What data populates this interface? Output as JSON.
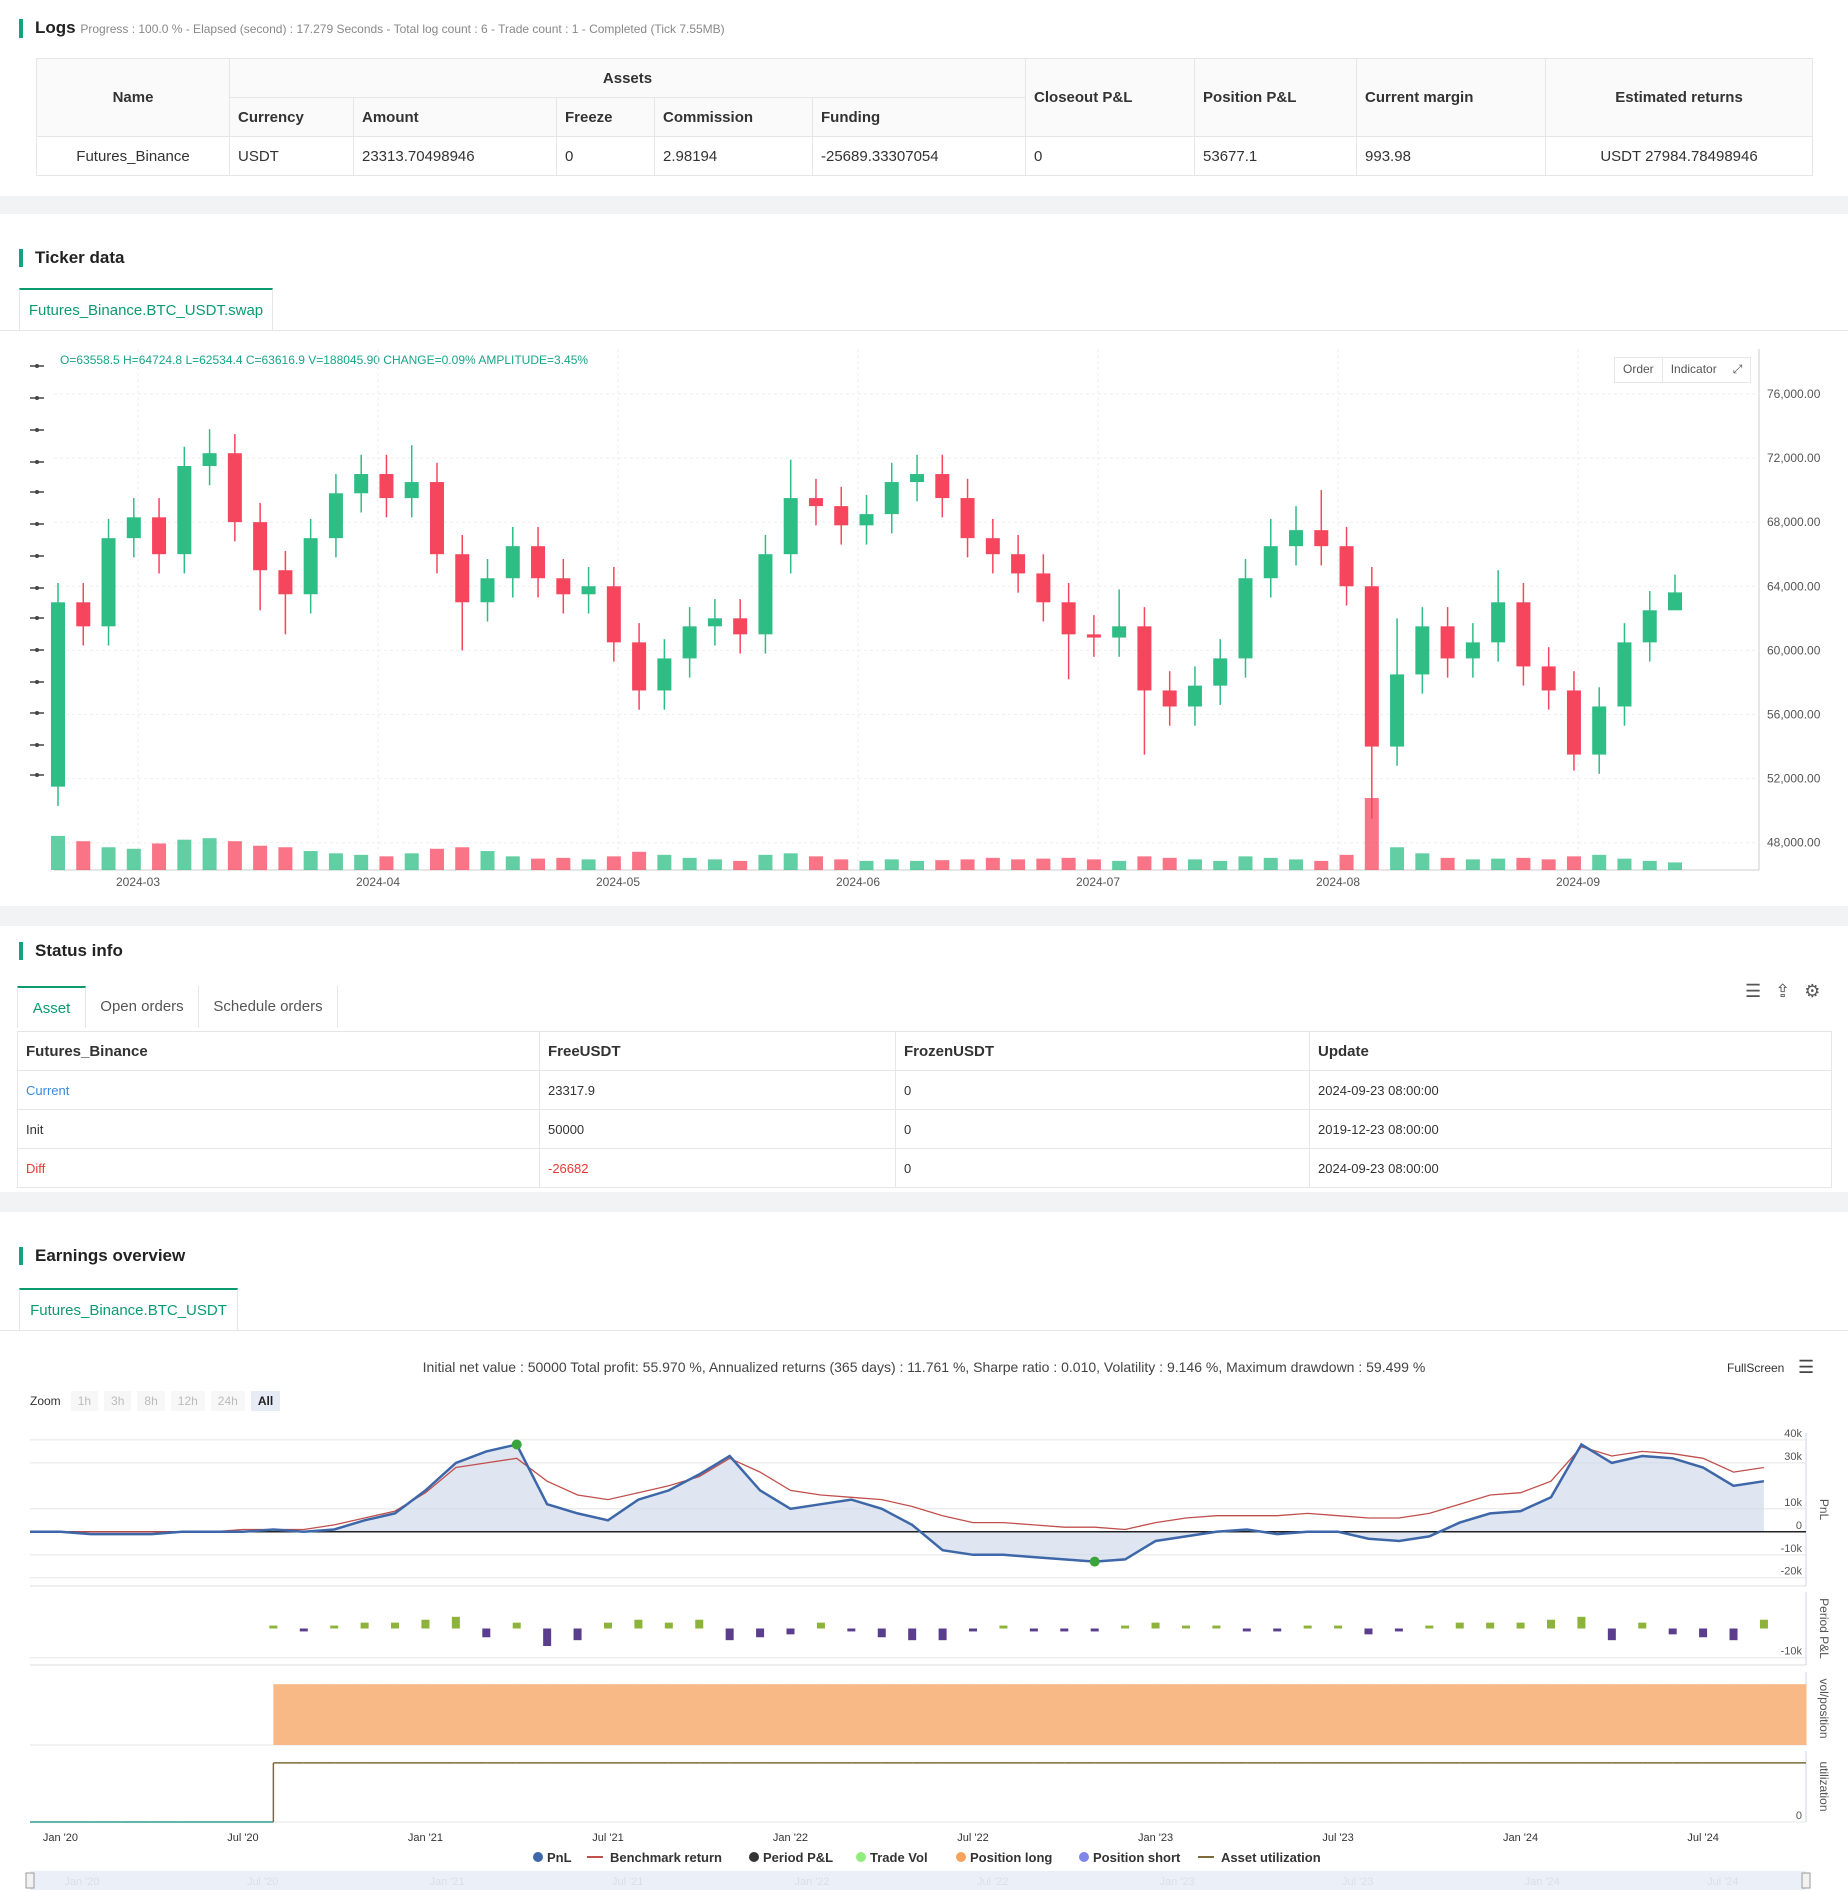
{
  "logs": {
    "title": "Logs",
    "summary": "Progress : 100.0 % - Elapsed (second) : 17.279  Seconds - Total log count : 6 - Trade count : 1 - Completed (Tick 7.55MB)",
    "table": {
      "header_top": [
        "Name",
        "Assets",
        "Closeout P&L",
        "Position P&L",
        "Current margin",
        "Estimated returns"
      ],
      "header_sub": [
        "Currency",
        "Amount",
        "Freeze",
        "Commission",
        "Funding"
      ],
      "rows": [
        [
          "Futures_Binance",
          "USDT",
          "23313.70498946",
          "0",
          "2.98194",
          "-25689.33307054",
          "0",
          "53677.1",
          "993.98",
          "USDT 27984.78498946"
        ]
      ]
    }
  },
  "ticker": {
    "title": "Ticker data",
    "tab": "Futures_Binance.BTC_USDT.swap",
    "info": "O=63558.5 H=64724.8 L=62534.4 C=63616.9 V=188045.90 CHANGE=0.09% AMPLITUDE=3.45%",
    "buttons": [
      "Order",
      "Indicator"
    ],
    "chart_data": {
      "type": "candlestick",
      "xticks": [
        "2024-03",
        "2024-04",
        "2024-05",
        "2024-06",
        "2024-07",
        "2024-08",
        "2024-09"
      ],
      "open": [
        51500,
        63000,
        61500,
        67000,
        68300,
        66000,
        71500,
        72300,
        68000,
        65000,
        63500,
        67000,
        69800,
        71000,
        69500,
        70500,
        66000,
        63000,
        64500,
        66500,
        64500,
        63500,
        64000,
        60500,
        57500,
        59500,
        61500,
        62000,
        61000,
        66000,
        69500,
        69000,
        67800,
        68500,
        70500,
        71000,
        69500,
        67000,
        66000,
        64800,
        63000,
        61000,
        60800,
        61500,
        57500,
        56500,
        57800,
        59500,
        64500,
        66500,
        67500,
        66500,
        64000,
        54000,
        58500,
        61500,
        59500,
        60500,
        63000,
        59000,
        57500,
        53500,
        56500,
        60500,
        62500
      ],
      "high": [
        64200,
        64200,
        68200,
        69500,
        69500,
        72700,
        73800,
        73500,
        69200,
        66200,
        68200,
        71000,
        72200,
        72200,
        72800,
        71700,
        67200,
        65700,
        67700,
        67700,
        65700,
        65200,
        65200,
        61700,
        60700,
        62700,
        63200,
        63200,
        67200,
        71900,
        70700,
        70200,
        69700,
        71700,
        72200,
        72200,
        70700,
        68200,
        67200,
        66000,
        64200,
        62200,
        63800,
        62700,
        58700,
        59000,
        60700,
        65700,
        68200,
        69000,
        70000,
        67700,
        65200,
        62000,
        62700,
        62700,
        61700,
        65000,
        64200,
        60200,
        58700,
        57700,
        61700,
        63700,
        64725
      ],
      "low": [
        50300,
        60300,
        60300,
        65800,
        64800,
        64800,
        70300,
        66800,
        62500,
        61000,
        62300,
        65800,
        68600,
        68300,
        68300,
        64800,
        60000,
        61800,
        63300,
        63300,
        62300,
        62300,
        59300,
        56300,
        56300,
        58300,
        60300,
        59800,
        59800,
        64800,
        67800,
        66600,
        66600,
        67300,
        69300,
        68300,
        65800,
        64800,
        63600,
        61800,
        58200,
        59600,
        59600,
        53500,
        55300,
        55300,
        56600,
        58300,
        63300,
        65300,
        65300,
        62800,
        49500,
        52800,
        57300,
        58300,
        58300,
        59300,
        57800,
        56300,
        52500,
        52300,
        55300,
        59300,
        62534
      ],
      "close": [
        63000,
        61500,
        67000,
        68300,
        66000,
        71500,
        72300,
        68000,
        65000,
        63500,
        67000,
        69800,
        71000,
        69500,
        70500,
        66000,
        63000,
        64500,
        66500,
        64500,
        63500,
        64000,
        60500,
        57500,
        59500,
        61500,
        62000,
        61000,
        66000,
        69500,
        69000,
        67800,
        68500,
        70500,
        71000,
        69500,
        67000,
        66000,
        64800,
        63000,
        61000,
        60800,
        61500,
        57500,
        56500,
        57800,
        59500,
        64500,
        66500,
        67500,
        66500,
        64000,
        54000,
        58500,
        61500,
        59500,
        60500,
        63000,
        59000,
        57500,
        53500,
        56500,
        60500,
        62500,
        63617
      ],
      "volume": [
        45,
        38,
        30,
        28,
        35,
        40,
        42,
        38,
        32,
        30,
        25,
        22,
        20,
        18,
        22,
        28,
        30,
        25,
        18,
        15,
        16,
        14,
        18,
        24,
        20,
        16,
        14,
        12,
        20,
        22,
        18,
        14,
        12,
        14,
        12,
        13,
        14,
        16,
        14,
        15,
        16,
        14,
        12,
        18,
        16,
        14,
        12,
        18,
        16,
        14,
        12,
        20,
        95,
        30,
        22,
        16,
        14,
        15,
        16,
        14,
        18,
        20,
        15,
        12,
        10
      ],
      "up_color": "#2ebd85",
      "down_color": "#f6465d",
      "ylim": [
        46300,
        78800
      ],
      "yticks": [
        {
          "value": 76000,
          "label": "76,000.00"
        },
        {
          "value": 72000,
          "label": "72,000.00"
        },
        {
          "value": 68000,
          "label": "68,000.00"
        },
        {
          "value": 64000,
          "label": "64,000.00"
        },
        {
          "value": 60000,
          "label": "60,000.00"
        },
        {
          "value": 56000,
          "label": "56,000.00"
        },
        {
          "value": 52000,
          "label": "52,000.00"
        },
        {
          "value": 48000,
          "label": "48,000.00"
        }
      ],
      "grid": true
    }
  },
  "status": {
    "title": "Status info",
    "tabs": [
      "Asset",
      "Open orders",
      "Schedule orders"
    ],
    "table": {
      "header": [
        "Futures_Binance",
        "FreeUSDT",
        "FrozenUSDT",
        "Update"
      ],
      "rows": [
        [
          "Current",
          "23317.9",
          "0",
          "2024-09-23 08:00:00"
        ],
        [
          "Init",
          "50000",
          "0",
          "2019-12-23 08:00:00"
        ],
        [
          "Diff",
          "-26682",
          "0",
          "2024-09-23 08:00:00"
        ]
      ]
    }
  },
  "earnings": {
    "title": "Earnings overview",
    "tab": "Futures_Binance.BTC_USDT",
    "summary": "Initial net value : 50000 Total profit: 55.970 %, Annualized returns (365 days) : 11.761 %, Sharpe ratio : 0.010, Volatility : 9.146 %, Maximum drawdown : 59.499 %",
    "fullscreen": "FullScreen",
    "zoom": {
      "label": "Zoom",
      "buttons": [
        "1h",
        "3h",
        "8h",
        "12h",
        "24h",
        "All"
      ],
      "active": "All"
    },
    "chart_data": {
      "type": "line",
      "x": [
        "2019-12",
        "2020-01",
        "2020-02",
        "2020-03",
        "2020-04",
        "2020-05",
        "2020-06",
        "2020-07",
        "2020-08",
        "2020-09",
        "2020-10",
        "2020-11",
        "2020-12",
        "2021-01",
        "2021-02",
        "2021-03",
        "2021-04",
        "2021-05",
        "2021-06",
        "2021-07",
        "2021-08",
        "2021-09",
        "2021-10",
        "2021-11",
        "2021-12",
        "2022-01",
        "2022-02",
        "2022-03",
        "2022-04",
        "2022-05",
        "2022-06",
        "2022-07",
        "2022-08",
        "2022-09",
        "2022-10",
        "2022-11",
        "2022-12",
        "2023-01",
        "2023-02",
        "2023-03",
        "2023-04",
        "2023-05",
        "2023-06",
        "2023-07",
        "2023-08",
        "2023-09",
        "2023-10",
        "2023-11",
        "2023-12",
        "2024-01",
        "2024-02",
        "2024-03",
        "2024-04",
        "2024-05",
        "2024-06",
        "2024-07",
        "2024-08",
        "2024-09"
      ],
      "xticks": [
        {
          "value": "2020-01",
          "label": "Jan '20"
        },
        {
          "value": "2020-07",
          "label": "Jul '20"
        },
        {
          "value": "2021-01",
          "label": "Jan '21"
        },
        {
          "value": "2021-07",
          "label": "Jul '21"
        },
        {
          "value": "2022-01",
          "label": "Jan '22"
        },
        {
          "value": "2022-07",
          "label": "Jul '22"
        },
        {
          "value": "2023-01",
          "label": "Jan '23"
        },
        {
          "value": "2023-07",
          "label": "Jul '23"
        },
        {
          "value": "2024-01",
          "label": "Jan '24"
        },
        {
          "value": "2024-07",
          "label": "Jul '24"
        }
      ],
      "series": [
        {
          "name": "PnL",
          "color": "#3d67a8",
          "axis": "pnl",
          "values": [
            0,
            0,
            -1000,
            -1000,
            -1000,
            0,
            0,
            0,
            1000,
            0,
            1000,
            5000,
            8000,
            18000,
            30000,
            35000,
            38000,
            12000,
            8000,
            5000,
            14000,
            18000,
            25000,
            33000,
            18000,
            10000,
            12000,
            14000,
            10000,
            3000,
            -8000,
            -10000,
            -10000,
            -11000,
            -12000,
            -13000,
            -12000,
            -4000,
            -2000,
            0,
            1000,
            -1000,
            0,
            0,
            -3000,
            -4000,
            -2000,
            4000,
            8000,
            9000,
            15000,
            38000,
            30000,
            33000,
            32000,
            28000,
            20000,
            22000
          ]
        },
        {
          "name": "Benchmark return",
          "color": "#c0504d",
          "axis": "pnl",
          "values": [
            0,
            0,
            0,
            0,
            0,
            0,
            0,
            1000,
            1000,
            1000,
            3000,
            6000,
            9000,
            17000,
            28000,
            30000,
            32000,
            22000,
            16000,
            14000,
            17000,
            20000,
            24000,
            32000,
            26000,
            18000,
            16000,
            15000,
            14000,
            11000,
            7000,
            4000,
            4000,
            3000,
            2000,
            2000,
            1000,
            4000,
            6000,
            7000,
            7000,
            7000,
            8000,
            7000,
            6000,
            6000,
            8000,
            12000,
            16000,
            17000,
            22000,
            37000,
            33000,
            35000,
            34000,
            32000,
            26000,
            28000
          ]
        },
        {
          "name": "Period P&L",
          "color": "#333333",
          "axis": "period",
          "up_color": "#8db33a",
          "down_color": "#5a3d8c",
          "values": [
            0,
            0,
            0,
            0,
            0,
            0,
            0,
            0,
            1000,
            -1000,
            1000,
            2000,
            2000,
            3000,
            4000,
            -3000,
            2000,
            -6000,
            -4000,
            2000,
            3000,
            2000,
            3000,
            -4000,
            -3000,
            -2000,
            2000,
            -1000,
            -3000,
            -4000,
            -4000,
            -1000,
            1000,
            -1000,
            -1000,
            -1000,
            1000,
            2000,
            1000,
            1000,
            -1000,
            -1000,
            1000,
            1000,
            -2000,
            -1000,
            1000,
            2000,
            2000,
            2000,
            3000,
            4000,
            -4000,
            2000,
            -2000,
            -3000,
            -4000,
            3000
          ]
        },
        {
          "name": "Trade Vol",
          "color": "#90ed7d"
        },
        {
          "name": "Position long",
          "color": "#f7a35c",
          "axis": "position",
          "values": [
            0,
            0,
            0,
            0,
            0,
            0,
            0,
            0,
            1,
            1,
            1,
            1,
            1,
            1,
            1,
            1,
            1,
            1,
            1,
            1,
            1,
            1,
            1,
            1,
            1,
            1,
            1,
            1,
            1,
            1,
            1,
            1,
            1,
            1,
            1,
            1,
            1,
            1,
            1,
            1,
            1,
            1,
            1,
            1,
            1,
            1,
            1,
            1,
            1,
            1,
            1,
            1,
            1,
            1,
            1,
            1,
            1,
            1
          ]
        },
        {
          "name": "Position short",
          "color": "#8085e9"
        },
        {
          "name": "Asset utilization",
          "color": "#7d6b3a",
          "axis": "utilization",
          "values": [
            0,
            0,
            0,
            0,
            0,
            0,
            0,
            0,
            1,
            1,
            1,
            1,
            1,
            1,
            1,
            1,
            1,
            1,
            1,
            1,
            1,
            1,
            1,
            1,
            1,
            1,
            1,
            1,
            1,
            1,
            1,
            1,
            1,
            1,
            1,
            1,
            1,
            1,
            1,
            1,
            1,
            1,
            1,
            1,
            1,
            1,
            1,
            1,
            1,
            1,
            1,
            1,
            1,
            1,
            1,
            1,
            1,
            1
          ]
        }
      ],
      "axes": {
        "pnl": {
          "title": "PnL",
          "ylim": [
            -23600,
            43000
          ],
          "yticks": [
            {
              "value": 40000,
              "label": "40k"
            },
            {
              "value": 30000,
              "label": "30k"
            },
            {
              "value": 10000,
              "label": "10k"
            },
            0,
            {
              "value": -10000,
              "label": "-10k"
            },
            {
              "value": -20000,
              "label": "-20k"
            }
          ]
        },
        "period": {
          "title": "Period P&L",
          "ylim": [
            -12500,
            12500
          ],
          "yticks": [
            {
              "value": -10000,
              "label": "-10k"
            }
          ]
        },
        "position": {
          "title": "vol/position",
          "ylim": [
            0,
            1.2
          ],
          "yticks": [
            0
          ]
        },
        "utilization": {
          "title": "utilization",
          "ylim": [
            0,
            1.2
          ],
          "yticks": [
            0
          ]
        }
      },
      "grid": true
    }
  }
}
